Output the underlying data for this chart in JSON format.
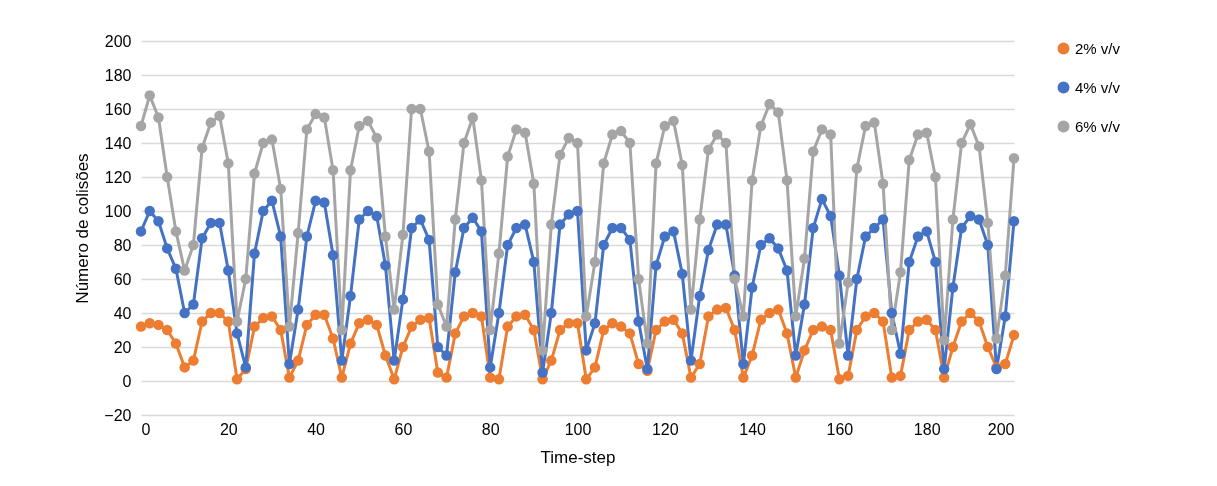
{
  "chart_data": {
    "type": "line",
    "xlabel": "Time-step",
    "ylabel": "Número de colisões",
    "x": [
      0,
      2,
      4,
      6,
      8,
      10,
      12,
      14,
      16,
      18,
      20,
      22,
      24,
      26,
      28,
      30,
      32,
      34,
      36,
      38,
      40,
      42,
      44,
      46,
      48,
      50,
      52,
      54,
      56,
      58,
      60,
      62,
      64,
      66,
      68,
      70,
      72,
      74,
      76,
      78,
      80,
      82,
      84,
      86,
      88,
      90,
      92,
      94,
      96,
      98,
      100,
      102,
      104,
      106,
      108,
      110,
      112,
      114,
      116,
      118,
      120,
      122,
      124,
      126,
      128,
      130,
      132,
      134,
      136,
      138,
      140,
      142,
      144,
      146,
      148,
      150,
      152,
      154,
      156,
      158,
      160,
      162,
      164,
      166,
      168,
      170,
      172,
      174,
      176,
      178,
      180,
      182,
      184,
      186,
      188,
      190,
      192,
      194,
      196,
      198,
      200
    ],
    "series": [
      {
        "name": "2% v/v",
        "color": "#ed7d31",
        "values": [
          32,
          34,
          33,
          30,
          22,
          8,
          12,
          35,
          40,
          40,
          35,
          1,
          7,
          32,
          37,
          38,
          30,
          2,
          12,
          33,
          39,
          39,
          25,
          2,
          22,
          34,
          36,
          33,
          15,
          1,
          20,
          32,
          36,
          37,
          5,
          2,
          28,
          38,
          40,
          38,
          2,
          1,
          32,
          38,
          39,
          30,
          1,
          12,
          30,
          34,
          34,
          1,
          8,
          30,
          34,
          32,
          28,
          10,
          6,
          30,
          35,
          36,
          28,
          2,
          10,
          38,
          42,
          43,
          30,
          2,
          15,
          36,
          40,
          42,
          28,
          2,
          18,
          30,
          32,
          30,
          1,
          3,
          30,
          38,
          40,
          35,
          2,
          3,
          30,
          35,
          36,
          30,
          2,
          20,
          35,
          40,
          35,
          20,
          8,
          10,
          27
        ]
      },
      {
        "name": "4% v/v",
        "color": "#4472c4",
        "values": [
          88,
          100,
          94,
          78,
          66,
          40,
          45,
          84,
          93,
          93,
          65,
          28,
          8,
          75,
          100,
          106,
          85,
          10,
          42,
          85,
          106,
          105,
          74,
          12,
          50,
          95,
          100,
          97,
          68,
          12,
          48,
          90,
          95,
          83,
          20,
          15,
          64,
          90,
          96,
          88,
          8,
          40,
          80,
          90,
          92,
          70,
          5,
          40,
          92,
          98,
          100,
          18,
          34,
          80,
          90,
          90,
          83,
          35,
          7,
          68,
          85,
          88,
          63,
          12,
          50,
          77,
          92,
          92,
          62,
          10,
          55,
          80,
          84,
          78,
          65,
          15,
          45,
          90,
          107,
          97,
          62,
          15,
          60,
          85,
          90,
          95,
          40,
          16,
          70,
          85,
          88,
          70,
          7,
          55,
          90,
          97,
          95,
          80,
          7,
          38,
          94
        ]
      },
      {
        "name": "6% v/v",
        "color": "#a5a5a5",
        "values": [
          150,
          168,
          155,
          120,
          88,
          65,
          80,
          137,
          152,
          156,
          128,
          35,
          60,
          122,
          140,
          142,
          113,
          32,
          87,
          148,
          157,
          155,
          124,
          30,
          124,
          150,
          153,
          143,
          85,
          42,
          86,
          160,
          160,
          135,
          45,
          32,
          95,
          140,
          155,
          118,
          30,
          75,
          132,
          148,
          146,
          116,
          18,
          92,
          133,
          143,
          140,
          38,
          70,
          128,
          145,
          147,
          140,
          60,
          22,
          128,
          150,
          153,
          127,
          42,
          95,
          136,
          145,
          140,
          60,
          38,
          118,
          150,
          163,
          158,
          118,
          38,
          72,
          135,
          148,
          145,
          22,
          58,
          125,
          150,
          152,
          116,
          30,
          64,
          130,
          145,
          146,
          120,
          24,
          95,
          140,
          151,
          138,
          93,
          25,
          62,
          131
        ]
      }
    ],
    "xlim": [
      0,
      200
    ],
    "xticks": [
      0,
      20,
      40,
      60,
      80,
      100,
      120,
      140,
      160,
      180,
      200
    ],
    "ylim": [
      -20,
      200
    ],
    "yticks": [
      -20,
      0,
      20,
      40,
      60,
      80,
      100,
      120,
      140,
      160,
      180,
      200
    ],
    "grid": "y",
    "legend": "right",
    "marker": "circle",
    "line_style": "solid"
  }
}
